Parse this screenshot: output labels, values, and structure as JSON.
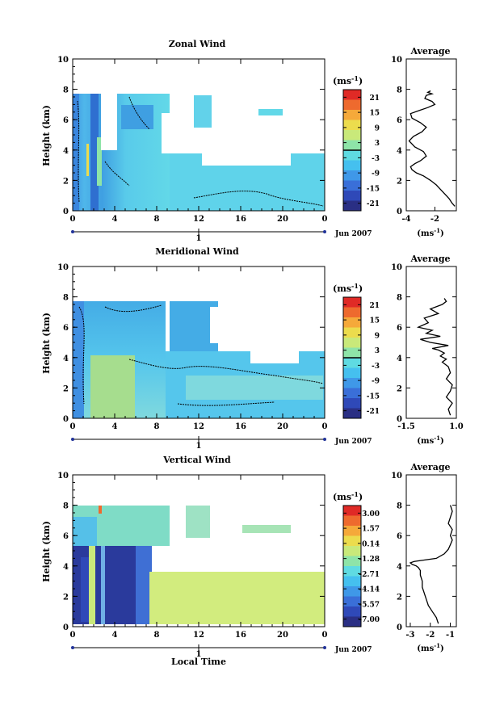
{
  "figure": {
    "colorbar_unit": "(ms",
    "colorbar_unit_sup": "-1",
    "colorbar_unit_close": ")",
    "profile_xlabel": "(ms",
    "profile_xlabel_sup": "-1",
    "profile_xlabel_close": ")",
    "date_label": "Jun 2007",
    "day_label": "1",
    "bottom_xlabel": "Local Time"
  },
  "colors": {
    "scale": [
      "#2a2f84",
      "#2f49b8",
      "#3a6fd8",
      "#3f98e8",
      "#45c0ef",
      "#5fdbe2",
      "#8ee4a8",
      "#c9e97a",
      "#ecdc4d",
      "#f5a93a",
      "#ee6a2e",
      "#e02a26"
    ],
    "zonal_background": [
      "#4fb7ea",
      "#59cbea",
      "#3fa2e3",
      "#62d2ea"
    ],
    "meridional_background": [
      "#55c6ec",
      "#7fd9de",
      "#a6dd8e",
      "#44ace6"
    ],
    "vertical_background": [
      "#2f49b8",
      "#3f6fd4",
      "#c9e97a",
      "#8ee4a8"
    ]
  },
  "chart_data": [
    {
      "type": "heatmap",
      "title": "Zonal Wind",
      "xlabel": "",
      "ylabel": "Height (km)",
      "x_ticks": [
        "0",
        "4",
        "8",
        "12",
        "16",
        "20",
        "0"
      ],
      "y_ticks": [
        "0",
        "2",
        "4",
        "6",
        "8",
        "10"
      ],
      "xlim": [
        0,
        24
      ],
      "ylim": [
        0,
        10
      ],
      "colorbar": {
        "ticks": [
          "21",
          "15",
          "9",
          "3",
          "-3",
          "-9",
          "-15",
          "-21"
        ],
        "range": [
          -24,
          24
        ]
      },
      "data_extent_km": 7.7
    },
    {
      "type": "line",
      "title": "Average",
      "x_ticks": [
        "-4",
        "-2"
      ],
      "y_ticks": [
        "0",
        "2",
        "4",
        "6",
        "8",
        "10"
      ],
      "xlim": [
        -4,
        -0.5
      ],
      "ylim": [
        0,
        10
      ],
      "series": [
        {
          "x": [
            -0.6,
            -0.8,
            -1.0,
            -1.3,
            -1.6,
            -1.9,
            -2.3,
            -2.8,
            -3.3,
            -3.6,
            -3.7,
            -3.4,
            -3.0,
            -2.6,
            -2.8,
            -3.4,
            -3.8,
            -3.5,
            -2.9,
            -2.6,
            -3.0,
            -3.6,
            -3.7,
            -3.1,
            -2.5,
            -2.0,
            -2.2,
            -2.7,
            -2.6,
            -2.2,
            -2.5,
            -2.3
          ],
          "y": [
            0.3,
            0.5,
            0.8,
            1.1,
            1.4,
            1.7,
            2.0,
            2.3,
            2.5,
            2.7,
            2.9,
            3.1,
            3.3,
            3.6,
            3.9,
            4.2,
            4.6,
            4.9,
            5.2,
            5.5,
            5.8,
            6.1,
            6.4,
            6.6,
            6.8,
            7.0,
            7.2,
            7.4,
            7.6,
            7.7,
            7.8,
            7.9
          ]
        }
      ]
    },
    {
      "type": "heatmap",
      "title": "Meridional Wind",
      "xlabel": "",
      "ylabel": "Height (km)",
      "x_ticks": [
        "0",
        "4",
        "8",
        "12",
        "16",
        "20",
        "0"
      ],
      "y_ticks": [
        "0",
        "2",
        "4",
        "6",
        "8",
        "10"
      ],
      "xlim": [
        0,
        24
      ],
      "ylim": [
        0,
        10
      ],
      "colorbar": {
        "ticks": [
          "21",
          "15",
          "9",
          "3",
          "-3",
          "-9",
          "-15",
          "-21"
        ],
        "range": [
          -24,
          24
        ]
      },
      "data_extent_km": 7.8
    },
    {
      "type": "line",
      "title": "Average",
      "x_ticks": [
        "-1.5",
        "1.0"
      ],
      "y_ticks": [
        "0",
        "2",
        "4",
        "6",
        "8",
        "10"
      ],
      "xlim": [
        -1.5,
        1.0
      ],
      "ylim": [
        0,
        10
      ],
      "series": [
        {
          "x": [
            0.7,
            0.6,
            0.8,
            0.5,
            0.7,
            0.8,
            0.5,
            0.7,
            0.6,
            0.3,
            0.5,
            0.2,
            0.4,
            0.1,
            -0.2,
            0.6,
            -0.3,
            -0.8,
            0.2,
            -0.5,
            -0.2,
            -0.9,
            -0.4,
            -0.6,
            0.1,
            -0.3,
            0.3,
            0.5,
            0.4
          ],
          "y": [
            0.2,
            0.6,
            1.0,
            1.4,
            1.8,
            2.2,
            2.6,
            3.0,
            3.4,
            3.7,
            3.9,
            4.1,
            4.3,
            4.5,
            4.6,
            4.8,
            5.0,
            5.2,
            5.4,
            5.6,
            5.8,
            6.0,
            6.3,
            6.6,
            6.9,
            7.2,
            7.5,
            7.7,
            7.9
          ]
        }
      ]
    },
    {
      "type": "heatmap",
      "title": "Vertical Wind",
      "xlabel": "Local Time",
      "ylabel": "Height (km)",
      "x_ticks": [
        "0",
        "4",
        "8",
        "12",
        "16",
        "20",
        "0"
      ],
      "y_ticks": [
        "0",
        "2",
        "4",
        "6",
        "8",
        "10"
      ],
      "xlim": [
        0,
        24
      ],
      "ylim": [
        0,
        10
      ],
      "colorbar": {
        "ticks": [
          "3.00",
          "1.57",
          "0.14",
          "-1.28",
          "-2.71",
          "-4.14",
          "-5.57",
          "-7.00"
        ],
        "range": [
          -7.7,
          3.7
        ]
      },
      "data_extent_km": 8.0
    },
    {
      "type": "line",
      "title": "Average",
      "x_ticks": [
        "-3",
        "-2",
        "-1"
      ],
      "y_ticks": [
        "0",
        "2",
        "4",
        "6",
        "8",
        "10"
      ],
      "xlim": [
        -3.2,
        -0.7
      ],
      "ylim": [
        0,
        10
      ],
      "series": [
        {
          "x": [
            -1.6,
            -1.7,
            -1.9,
            -2.1,
            -2.2,
            -2.3,
            -2.4,
            -2.4,
            -2.5,
            -2.5,
            -2.6,
            -2.7,
            -2.9,
            -3.0,
            -2.8,
            -1.7,
            -1.3,
            -1.1,
            -1.0,
            -0.9,
            -1.0,
            -0.9,
            -1.1,
            -1.0,
            -0.9,
            -1.0
          ],
          "y": [
            0.2,
            0.6,
            1.0,
            1.4,
            1.8,
            2.2,
            2.6,
            3.0,
            3.4,
            3.7,
            3.9,
            4.0,
            4.1,
            4.2,
            4.3,
            4.5,
            4.8,
            5.1,
            5.4,
            5.7,
            6.0,
            6.4,
            6.8,
            7.2,
            7.6,
            8.0
          ]
        }
      ]
    }
  ]
}
